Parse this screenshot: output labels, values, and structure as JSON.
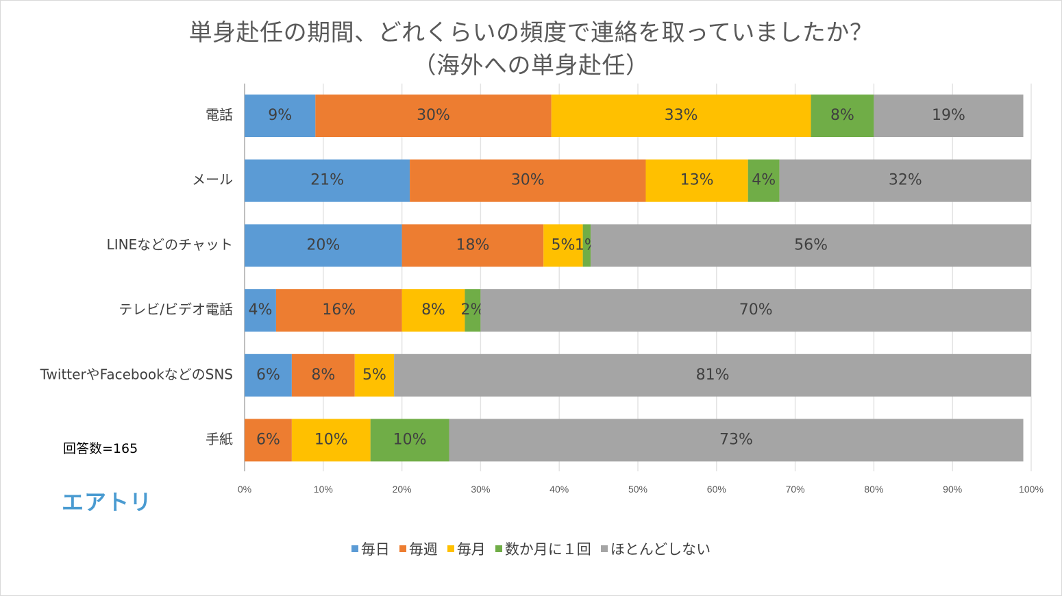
{
  "chart_data": {
    "type": "bar",
    "orientation": "horizontal",
    "stacked": true,
    "title": "単身赴任の期間、どれくらいの頻度で連絡を取っていましたか？",
    "subtitle": "（海外への単身赴任）",
    "categories": [
      "電話",
      "メール",
      "LINEなどのチャット",
      "テレビ/ビデオ電話",
      "TwitterやFacebookなどのSNS",
      "手紙"
    ],
    "series": [
      {
        "name": "毎日",
        "color": "#5b9bd5",
        "values": [
          9,
          21,
          20,
          4,
          6,
          0
        ],
        "labels": [
          "9%",
          "21%",
          "20%",
          "4%",
          "6%",
          ""
        ]
      },
      {
        "name": "毎週",
        "color": "#ed7d31",
        "values": [
          30,
          30,
          18,
          16,
          8,
          6
        ],
        "labels": [
          "30%",
          "30%",
          "18%",
          "16%",
          "8%",
          "6%"
        ]
      },
      {
        "name": "毎月",
        "color": "#ffc000",
        "values": [
          33,
          13,
          5,
          8,
          5,
          10
        ],
        "labels": [
          "33%",
          "13%",
          "5%",
          "8%",
          "5%",
          "10%"
        ]
      },
      {
        "name": "数か月に１回",
        "color": "#70ad47",
        "values": [
          8,
          4,
          1,
          2,
          0,
          10
        ],
        "labels": [
          "8%",
          "4%",
          "1%",
          "2%",
          "",
          "10%"
        ]
      },
      {
        "name": "ほとんどしない",
        "color": "#a5a5a5",
        "values": [
          19,
          32,
          56,
          70,
          81,
          73
        ],
        "labels": [
          "19%",
          "32%",
          "56%",
          "70%",
          "81%",
          "73%"
        ]
      }
    ],
    "xlim": [
      0,
      100
    ],
    "xticks": [
      "0%",
      "10%",
      "20%",
      "30%",
      "40%",
      "50%",
      "60%",
      "70%",
      "80%",
      "90%",
      "100%"
    ],
    "grid": true,
    "legend_position": "bottom"
  },
  "note": "回答数=165",
  "logo_text": "エアトリ"
}
